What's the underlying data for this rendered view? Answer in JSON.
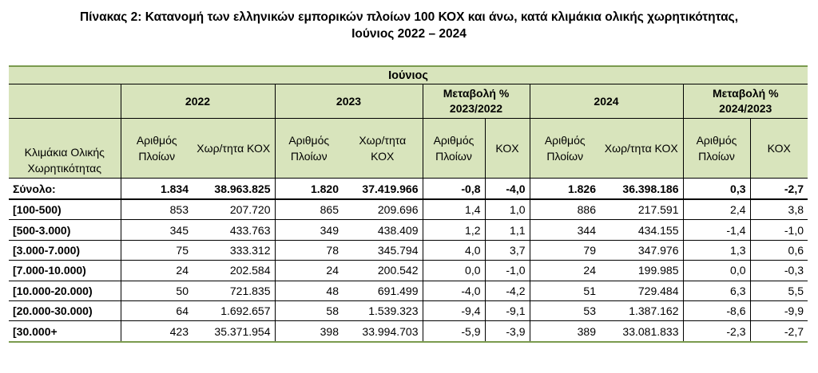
{
  "title": {
    "line1": "Πίνακας 2: Κατανομή των ελληνικών εμπορικών πλοίων 100 ΚΟΧ και άνω, κατά κλιμάκια ολικής χωρητικότητας,",
    "line2": "Ιούνιος 2022 – 2024"
  },
  "header": {
    "month": "Ιούνιος",
    "year_2022": "2022",
    "year_2023": "2023",
    "change_2023": "Μεταβολή % 2023/2022",
    "year_2024": "2024",
    "change_2024": "Μεταβολή % 2024/2023",
    "category": "Κλιμάκια Ολικής Χωρητικότητας",
    "ships": "Αριθμός Πλοίων",
    "capacity": "Χωρ/τητα ΚΟΧ",
    "kox": "ΚΟΧ"
  },
  "total": {
    "label": "Σύνολο:",
    "values": [
      "1.834",
      "38.963.825",
      "1.820",
      "37.419.966",
      "-0,8",
      "-4,0",
      "1.826",
      "36.398.186",
      "0,3",
      "-2,7"
    ]
  },
  "rows": [
    {
      "label": "[100-500)",
      "values": [
        "853",
        "207.720",
        "865",
        "209.696",
        "1,4",
        "1,0",
        "886",
        "217.591",
        "2,4",
        "3,8"
      ]
    },
    {
      "label": "[500-3.000)",
      "values": [
        "345",
        "433.763",
        "349",
        "438.409",
        "1,2",
        "1,1",
        "344",
        "434.155",
        "-1,4",
        "-1,0"
      ]
    },
    {
      "label": "[3.000-7.000)",
      "values": [
        "75",
        "333.312",
        "78",
        "345.794",
        "4,0",
        "3,7",
        "79",
        "347.976",
        "1,3",
        "0,6"
      ]
    },
    {
      "label": "[7.000-10.000)",
      "values": [
        "24",
        "202.584",
        "24",
        "200.542",
        "0,0",
        "-1,0",
        "24",
        "199.985",
        "0,0",
        "-0,3"
      ]
    },
    {
      "label": "[10.000-20.000)",
      "values": [
        "50",
        "721.835",
        "48",
        "691.499",
        "-4,0",
        "-4,2",
        "51",
        "729.484",
        "6,3",
        "5,5"
      ]
    },
    {
      "label": "[20.000-30.000)",
      "values": [
        "64",
        "1.692.657",
        "58",
        "1.539.323",
        "-9,4",
        "-9,1",
        "53",
        "1.387.162",
        "-8,6",
        "-9,9"
      ]
    },
    {
      "label": "[30.000+",
      "values": [
        "423",
        "35.371.954",
        "398",
        "33.994.703",
        "-5,9",
        "-3,9",
        "389",
        "33.081.833",
        "-2,3",
        "-2,7"
      ]
    }
  ]
}
